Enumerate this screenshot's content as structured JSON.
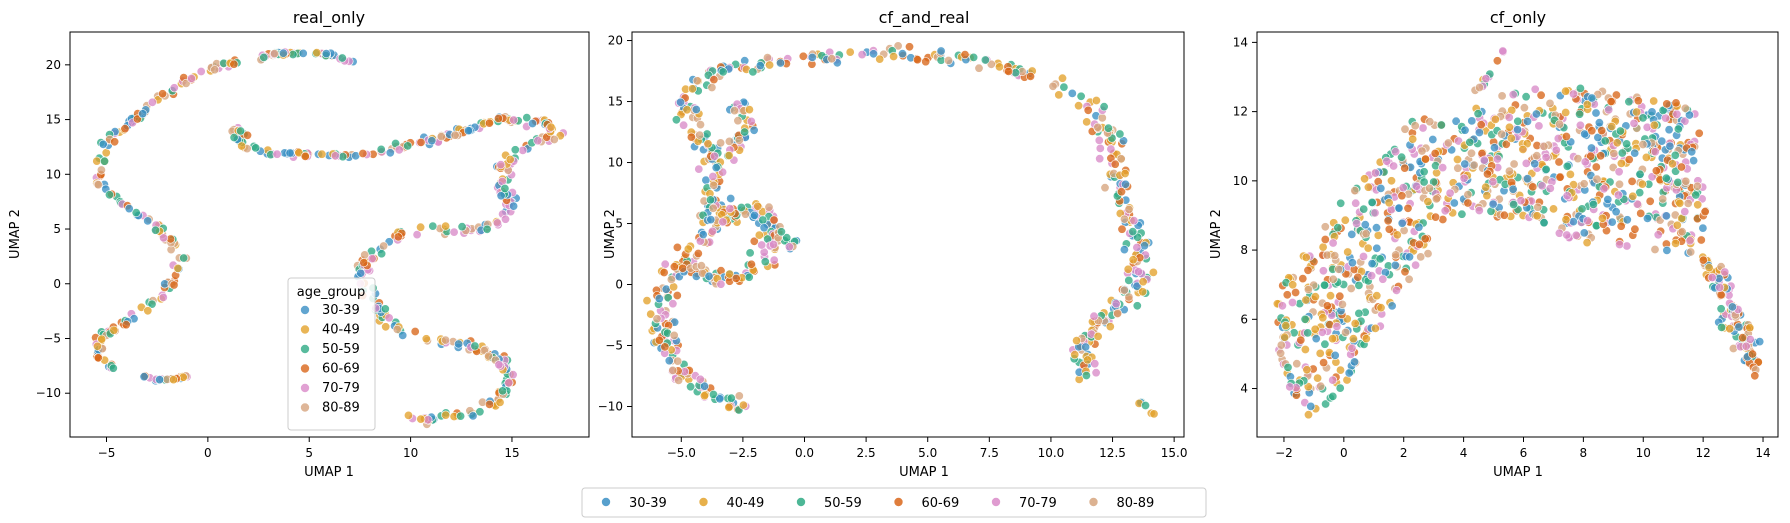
{
  "colors": {
    "30-39": "#3a8fc4",
    "40-49": "#e3a22c",
    "50-59": "#2eaa84",
    "60-69": "#d9661a",
    "70-79": "#d98ac8",
    "80-89": "#d6a47e"
  },
  "figure_legend": {
    "items": [
      "30-39",
      "40-49",
      "50-59",
      "60-69",
      "70-79",
      "80-89"
    ]
  },
  "chart_data": [
    {
      "type": "scatter",
      "title": "real_only",
      "xlabel": "UMAP 1",
      "ylabel": "UMAP 2",
      "xlim": [
        -6.8,
        18.8
      ],
      "ylim": [
        -14.0,
        23.0
      ],
      "xticks": [
        -5,
        0,
        5,
        10,
        15
      ],
      "yticks": [
        -10,
        -5,
        0,
        5,
        10,
        15,
        20
      ],
      "grid": false,
      "legend": {
        "title": "age_group",
        "placement": "lower-center",
        "entries": [
          "30-39",
          "40-49",
          "50-59",
          "60-69",
          "70-79",
          "80-89"
        ]
      },
      "series_names": [
        "30-39",
        "40-49",
        "50-59",
        "60-69",
        "70-79",
        "80-89"
      ],
      "manifold": [
        {
          "path": [
            [
              -1.0,
              -8.4
            ],
            [
              -1.6,
              -8.7
            ],
            [
              -2.5,
              -8.8
            ],
            [
              -3.2,
              -8.5
            ]
          ],
          "spread": 0.1,
          "n": 25
        },
        {
          "path": [
            [
              -4.6,
              -7.9
            ],
            [
              -5.3,
              -6.5
            ],
            [
              -5.4,
              -5.2
            ],
            [
              -4.7,
              -4.2
            ],
            [
              -3.5,
              -2.8
            ],
            [
              -2.5,
              -1.3
            ],
            [
              -1.7,
              0.5
            ],
            [
              -1.4,
              2.4
            ],
            [
              -1.8,
              3.9
            ],
            [
              -2.7,
              5.6
            ],
            [
              -4.3,
              7.4
            ],
            [
              -5.3,
              9.1
            ],
            [
              -5.3,
              11.2
            ],
            [
              -4.8,
              13.2
            ],
            [
              -3.7,
              15.0
            ],
            [
              -2.2,
              17.2
            ],
            [
              -0.5,
              19.2
            ],
            [
              0.8,
              20.0
            ],
            [
              1.5,
              20.2
            ]
          ],
          "spread": 0.3,
          "n": 170
        },
        {
          "path": [
            [
              2.5,
              20.6
            ],
            [
              3.4,
              21.0
            ],
            [
              4.6,
              21.1
            ],
            [
              5.6,
              21.0
            ],
            [
              6.3,
              20.8
            ],
            [
              7.2,
              20.2
            ]
          ],
          "spread": 0.15,
          "n": 45
        },
        {
          "path": [
            [
              1.3,
              14.1
            ],
            [
              1.8,
              12.6
            ],
            [
              2.8,
              12.0
            ],
            [
              4.0,
              11.8
            ],
            [
              5.5,
              11.7
            ],
            [
              7.0,
              11.8
            ],
            [
              8.6,
              12.1
            ],
            [
              10.2,
              12.6
            ],
            [
              12.0,
              13.5
            ],
            [
              13.5,
              14.6
            ],
            [
              15.0,
              15.0
            ],
            [
              16.6,
              14.7
            ],
            [
              17.3,
              13.6
            ],
            [
              16.3,
              12.9
            ],
            [
              15.3,
              12.2
            ],
            [
              14.6,
              10.8
            ],
            [
              14.5,
              9.3
            ],
            [
              14.9,
              7.5
            ],
            [
              14.4,
              5.5
            ],
            [
              12.5,
              4.8
            ],
            [
              10.3,
              4.9
            ],
            [
              9.0,
              4.2
            ],
            [
              8.0,
              2.5
            ],
            [
              7.6,
              0.8
            ],
            [
              8.2,
              -1.6
            ],
            [
              9.0,
              -3.5
            ],
            [
              10.0,
              -4.6
            ],
            [
              11.8,
              -5.3
            ],
            [
              13.5,
              -6.0
            ],
            [
              14.5,
              -6.8
            ],
            [
              15.0,
              -9.0
            ],
            [
              14.3,
              -10.8
            ],
            [
              12.8,
              -11.8
            ],
            [
              11.2,
              -12.2
            ],
            [
              10.0,
              -12.4
            ]
          ],
          "spread": 0.38,
          "n": 380
        }
      ]
    },
    {
      "type": "scatter",
      "title": "cf_and_real",
      "xlabel": "UMAP 1",
      "ylabel": "UMAP 2",
      "xlim": [
        -7.0,
        15.4
      ],
      "ylim": [
        -12.5,
        20.7
      ],
      "xticks": [
        -5.0,
        -2.5,
        0.0,
        2.5,
        5.0,
        7.5,
        10.0,
        12.5,
        15.0
      ],
      "xtick_labels": [
        "−5.0",
        "−2.5",
        "0.0",
        "2.5",
        "5.0",
        "7.5",
        "10.0",
        "12.5",
        "15.0"
      ],
      "yticks": [
        -10,
        -5,
        0,
        5,
        10,
        15,
        20
      ],
      "grid": false,
      "series_names": [
        "30-39",
        "40-49",
        "50-59",
        "60-69",
        "70-79",
        "80-89"
      ],
      "manifold": [
        {
          "path": [
            [
              -2.4,
              -10.2
            ],
            [
              -3.8,
              -9.0
            ],
            [
              -5.1,
              -7.0
            ],
            [
              -5.8,
              -4.0
            ],
            [
              -5.7,
              -1.0
            ],
            [
              -5.0,
              2.0
            ],
            [
              -3.8,
              4.5
            ],
            [
              -3.8,
              7.0
            ],
            [
              -3.4,
              10.0
            ],
            [
              -4.8,
              13.0
            ],
            [
              -4.8,
              15.0
            ],
            [
              -3.8,
              17.0
            ],
            [
              -2.0,
              18.0
            ],
            [
              0.0,
              18.5
            ],
            [
              2.0,
              18.9
            ],
            [
              4.0,
              18.9
            ],
            [
              6.0,
              18.7
            ],
            [
              8.0,
              18.0
            ],
            [
              9.5,
              17.0
            ],
            [
              10.5,
              16.0
            ],
            [
              11.5,
              14.5
            ],
            [
              12.2,
              12.5
            ],
            [
              12.5,
              10.5
            ],
            [
              12.8,
              8.0
            ],
            [
              13.2,
              5.5
            ],
            [
              13.4,
              2.5
            ],
            [
              13.7,
              0.5
            ],
            [
              13.0,
              -1.5
            ],
            [
              12.0,
              -3.0
            ],
            [
              11.3,
              -5.0
            ],
            [
              11.4,
              -7.5
            ]
          ],
          "spread": 0.55,
          "n": 520
        },
        {
          "path": [
            [
              -4.5,
              1.5
            ],
            [
              -3.8,
              0.5
            ],
            [
              -2.8,
              0.5
            ],
            [
              -2.0,
              1.0
            ],
            [
              -1.5,
              2.5
            ],
            [
              -1.0,
              4.0
            ],
            [
              -1.6,
              5.5
            ],
            [
              -2.5,
              6.5
            ],
            [
              -3.5,
              5.0
            ]
          ],
          "spread": 0.55,
          "n": 120
        },
        {
          "path": [
            [
              -3.4,
              10.5
            ],
            [
              -2.5,
              12.0
            ],
            [
              -2.3,
              13.5
            ],
            [
              -2.8,
              15.0
            ]
          ],
          "spread": 0.4,
          "n": 40
        },
        {
          "path": [
            [
              -0.6,
              3.0
            ],
            [
              -0.3,
              3.7
            ]
          ],
          "spread": 0.1,
          "n": 5
        },
        {
          "path": [
            [
              13.6,
              -9.6
            ],
            [
              14.2,
              -10.7
            ]
          ],
          "spread": 0.08,
          "n": 6
        }
      ]
    },
    {
      "type": "scatter",
      "title": "cf_only",
      "xlabel": "UMAP 1",
      "ylabel": "UMAP 2",
      "xlim": [
        -2.9,
        14.5
      ],
      "ylim": [
        2.6,
        14.3
      ],
      "xticks": [
        -2,
        0,
        2,
        4,
        6,
        8,
        10,
        12,
        14
      ],
      "xtick_labels": [
        "−2",
        "0",
        "2",
        "4",
        "6",
        "8",
        "10",
        "12",
        "14"
      ],
      "yticks": [
        4,
        6,
        8,
        10,
        12,
        14
      ],
      "grid": false,
      "series_names": [
        "30-39",
        "40-49",
        "50-59",
        "60-69",
        "70-79",
        "80-89"
      ],
      "manifold": [
        {
          "polygon": [
            [
              -1.3,
              3.1
            ],
            [
              -0.2,
              3.8
            ],
            [
              1.0,
              5.5
            ],
            [
              2.2,
              7.0
            ],
            [
              3.6,
              9.0
            ],
            [
              5.5,
              8.9
            ],
            [
              8.0,
              8.2
            ],
            [
              10.0,
              8.0
            ],
            [
              12.0,
              7.8
            ],
            [
              12.6,
              7.6
            ],
            [
              13.5,
              6.0
            ],
            [
              13.9,
              4.6
            ],
            [
              13.2,
              4.8
            ],
            [
              12.5,
              5.8
            ],
            [
              12.0,
              7.0
            ],
            [
              12.1,
              9.5
            ],
            [
              11.8,
              12.2
            ],
            [
              10.2,
              12.4
            ],
            [
              8.0,
              12.7
            ],
            [
              6.5,
              12.7
            ],
            [
              5.0,
              12.4
            ],
            [
              4.0,
              11.9
            ],
            [
              2.5,
              12.0
            ],
            [
              1.0,
              10.5
            ],
            [
              0.0,
              9.5
            ],
            [
              -1.0,
              8.3
            ],
            [
              -2.2,
              6.8
            ],
            [
              -2.3,
              5.2
            ],
            [
              -1.8,
              4.0
            ]
          ],
          "n": 1100
        },
        {
          "path": [
            [
              4.4,
              12.6
            ],
            [
              4.9,
              13.1
            ],
            [
              5.4,
              13.8
            ]
          ],
          "spread": 0.1,
          "n": 12
        },
        {
          "path": [
            [
              12.0,
              7.8
            ],
            [
              12.5,
              7.0
            ],
            [
              13.0,
              6.2
            ],
            [
              13.6,
              5.2
            ],
            [
              13.8,
              4.6
            ]
          ],
          "spread": 0.3,
          "n": 60
        }
      ]
    }
  ]
}
